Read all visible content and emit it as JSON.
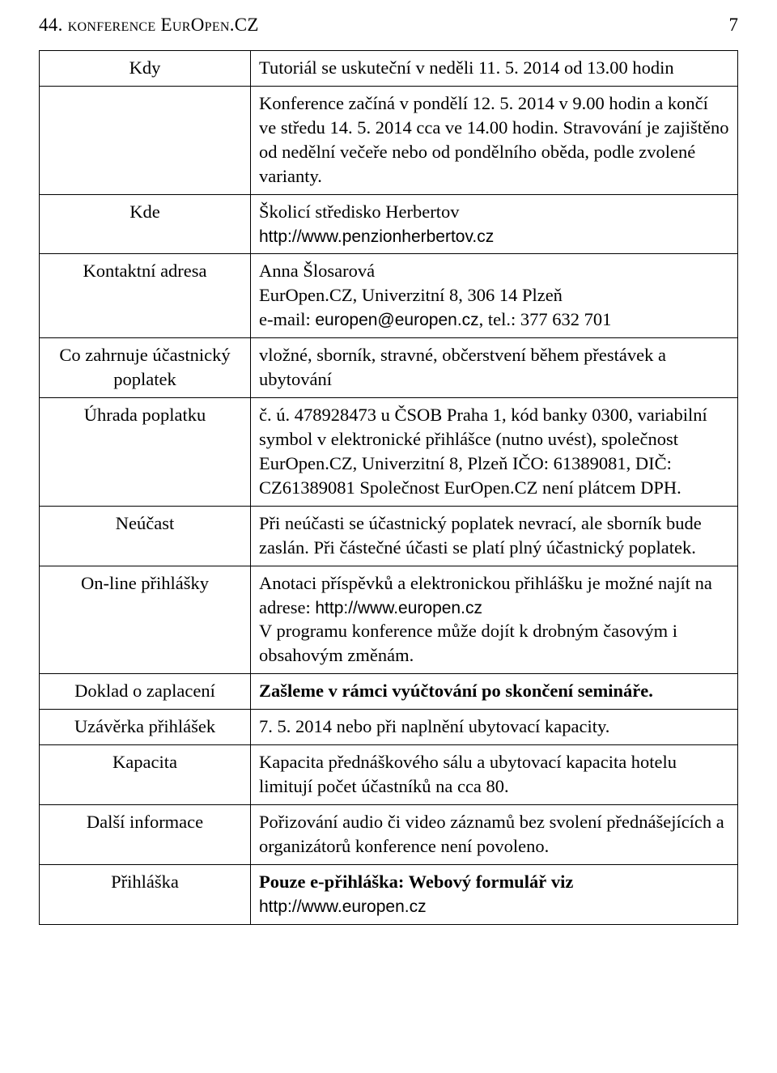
{
  "header": {
    "left": "44. konference EurOpen.CZ",
    "page_number": "7"
  },
  "table": {
    "rows": [
      {
        "label": "Kdy",
        "value_html": "Tutoriál se uskuteční v neděli 11. 5. 2014 od 13.00 hodin"
      },
      {
        "label": "",
        "value_html": "Konference začíná v pondělí 12. 5. 2014 v 9.00 hodin a končí ve středu 14. 5. 2014 cca ve 14.00 hodin. Stravování je zajištěno od nedělní večeře nebo od pondělního oběda, podle zvolené varianty."
      },
      {
        "label": "Kde",
        "value_html": "Školicí středisko Herbertov<br><span class=\"mono\">http://www.penzionherbertov.cz</span>"
      },
      {
        "label": "Kontaktní adresa",
        "value_html": "Anna Šlosarová<br>EurOpen.CZ, Univerzitní 8, 306 14 Plzeň<br>e-mail: <span class=\"mono\">europen@europen.cz</span>, tel.: 377 632 701"
      },
      {
        "label": "Co zahrnuje účastnický poplatek",
        "value_html": "vložné, sborník, stravné, občerstvení během přestávek a ubytování"
      },
      {
        "label": "Úhrada poplatku",
        "value_html": "č. ú. 478928473 u ČSOB Praha 1, kód banky 0300, variabilní symbol v elektronické přihlášce (nutno uvést), společnost EurOpen.CZ, Univerzitní 8, Plzeň IČO: 61389081, DIČ: CZ61389081 Společnost EurOpen.CZ není plátcem DPH."
      },
      {
        "label": "Neúčast",
        "value_html": "Při neúčasti se účastnický poplatek nevrací, ale sborník bude zaslán. Při částečné účasti se platí plný účastnický poplatek."
      },
      {
        "label": "On-line přihlášky",
        "value_html": "Anotaci příspěvků a elektronickou přihlášku je možné najít na adrese: <span class=\"mono\">http://www.europen.cz</span><br>V programu konference může dojít k drobným časovým i obsahovým změnám."
      },
      {
        "label": "Doklad o zaplacení",
        "value_html": "<span class=\"bold\">Zašleme v rámci vyúčtování po skončení semináře.</span>"
      },
      {
        "label": "Uzávěrka přihlášek",
        "value_html": "7. 5. 2014 nebo při naplnění ubytovací kapacity."
      },
      {
        "label": "Kapacita",
        "value_html": "Kapacita přednáškového sálu a ubytovací kapacita hotelu limitují počet účastníků na cca 80."
      },
      {
        "label": "Další informace",
        "value_html": "Pořizování audio či video záznamů bez svolení přednášejících a organizátorů konference není povoleno."
      },
      {
        "label": "Přihláška",
        "value_html": "<span class=\"bold\">Pouze e-přihláška: Webový formulář viz</span><br><span class=\"mono\">http://www.europen.cz</span>"
      }
    ]
  }
}
